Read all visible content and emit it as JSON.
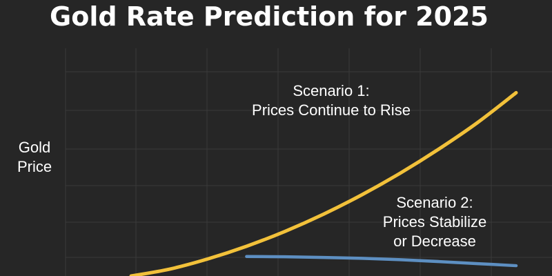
{
  "chart_data": {
    "type": "line",
    "title": "Gold Rate Prediction for 2025",
    "xlabel": "",
    "ylabel": "Gold Price",
    "grid": true,
    "legend": "none",
    "colors": {
      "background": "#262626",
      "grid": "#3a3a3a",
      "scenario_1": "#f2c13a",
      "scenario_2": "#5d8fc2"
    },
    "xlim": [
      0,
      100
    ],
    "ylim": [
      0,
      100
    ],
    "series": [
      {
        "x": [
          0,
          10,
          20,
          30,
          40,
          50,
          60,
          70,
          80,
          90,
          100
        ],
        "values": [
          0,
          3,
          7.5,
          13,
          19.5,
          27,
          35.5,
          45,
          55.5,
          67,
          80
        ]
      },
      {
        "x": [
          30,
          40,
          50,
          60,
          70,
          80,
          90,
          100
        ],
        "values": [
          8.5,
          8.4,
          8.1,
          7.7,
          7.1,
          6.3,
          5.4,
          4.5
        ]
      }
    ],
    "annotations": [
      {
        "lines": [
          "Scenario 1:",
          "Prices Continue to Rise"
        ]
      },
      {
        "lines": [
          "Scenario 2:",
          "Prices Stabilize",
          "or Decrease"
        ]
      }
    ]
  }
}
